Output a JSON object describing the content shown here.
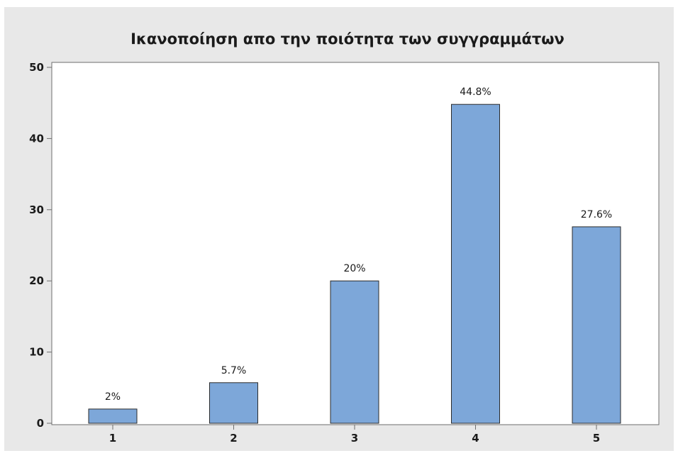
{
  "chart_data": {
    "type": "bar",
    "title": "Ικανοποίηση απο την ποιότητα των συγγραμμάτων",
    "xlabel": "",
    "ylabel": "",
    "categories": [
      "1",
      "2",
      "3",
      "4",
      "5"
    ],
    "values": [
      2,
      5.7,
      20,
      44.8,
      27.6
    ],
    "data_labels": [
      "2%",
      "5.7%",
      "20%",
      "44.8%",
      "27.6%"
    ],
    "ylim": [
      0,
      50
    ],
    "yticks": [
      0,
      10,
      20,
      30,
      40,
      50
    ],
    "ytick_labels": [
      "0",
      "10",
      "20",
      "30",
      "40",
      "50"
    ],
    "grid": false,
    "legend": "none"
  },
  "colors": {
    "bar_fill": "#7da7d9",
    "bar_stroke": "#2b2b2b",
    "frame_background": "#e8e8e8",
    "plot_background": "#ffffff",
    "axis": "#6e6e6e",
    "text": "#1a1a1a"
  }
}
